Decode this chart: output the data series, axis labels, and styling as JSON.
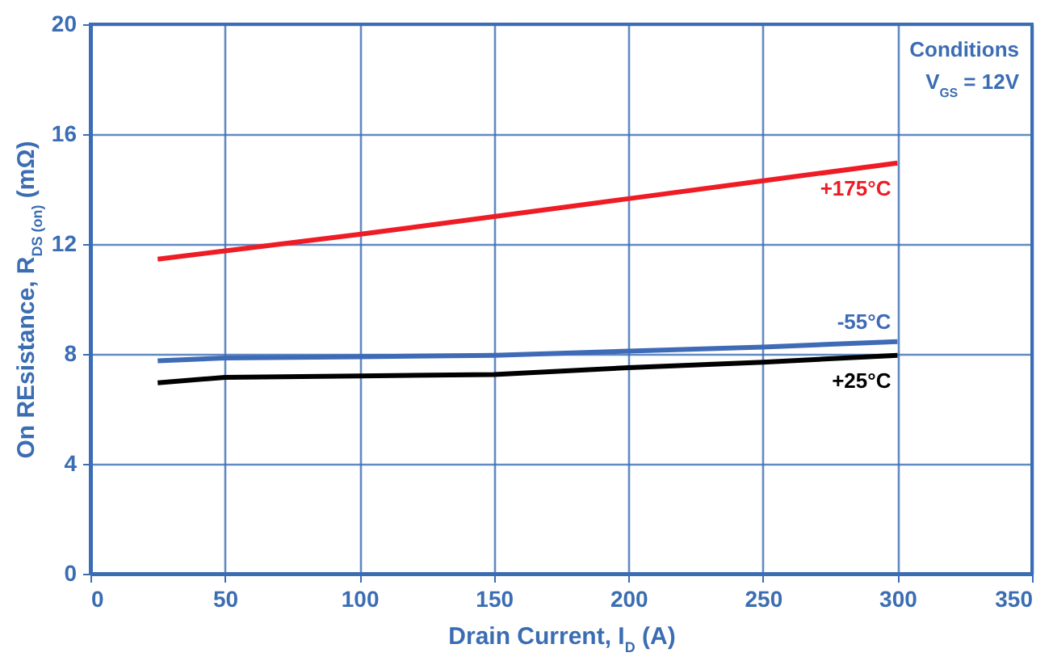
{
  "chart_data": {
    "type": "line",
    "xlabel": "Drain Current, I$_{D}$ (A)",
    "ylabel": "On REsistance, R$_{DS (on)}$ (mΩ)",
    "x": [
      25,
      50,
      100,
      150,
      200,
      250,
      300
    ],
    "series": [
      {
        "name": "+175°C",
        "color": "#ee1c25",
        "values": [
          11.45,
          11.75,
          12.35,
          13.0,
          13.65,
          14.3,
          14.95
        ]
      },
      {
        "name": "-55°C",
        "color": "#3f6bb6",
        "values": [
          7.75,
          7.85,
          7.9,
          7.95,
          8.1,
          8.25,
          8.45
        ]
      },
      {
        "name": "+25°C",
        "color": "#000000",
        "values": [
          6.95,
          7.15,
          7.2,
          7.25,
          7.5,
          7.7,
          7.95
        ]
      }
    ],
    "annotations": [
      "Conditions",
      "V$_{GS}$ = 12V"
    ],
    "xlim": [
      0,
      350
    ],
    "xticks": [
      0,
      50,
      100,
      150,
      200,
      250,
      300,
      350
    ],
    "ylim": [
      0,
      20
    ],
    "yticks": [
      0,
      4,
      8,
      12,
      16,
      20
    ],
    "grid": true,
    "legend": false,
    "marker": "none",
    "line_style": "solid"
  }
}
